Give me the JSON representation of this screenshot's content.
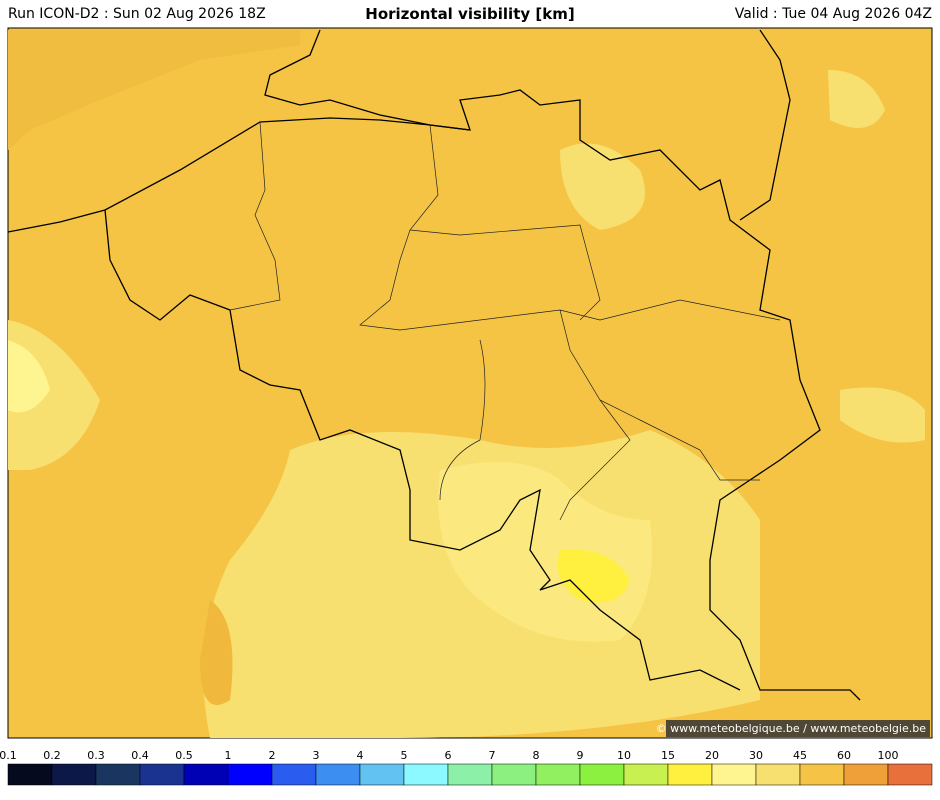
{
  "header": {
    "run": "Run ICON-D2 : Sun 02 Aug 2026 18Z",
    "title": "Horizontal visibility [km]",
    "valid": "Valid : Tue 04 Aug 2026 04Z"
  },
  "map": {
    "credit": "© www.meteobelgique.be / www.meteobelgie.be"
  },
  "colorbar": {
    "labels": [
      "0.1",
      "0.2",
      "0.3",
      "0.4",
      "0.5",
      "1",
      "2",
      "3",
      "4",
      "5",
      "6",
      "7",
      "8",
      "9",
      "10",
      "15",
      "20",
      "30",
      "45",
      "60",
      "100"
    ],
    "colors": [
      "#050a1e",
      "#0c1848",
      "#1a3560",
      "#1a3290",
      "#0000b4",
      "#0000ff",
      "#2a5cf0",
      "#3c8ef0",
      "#62c2f2",
      "#8cf8ff",
      "#8cf0a8",
      "#8cf080",
      "#90f060",
      "#8cf040",
      "#c8f050",
      "#fff040",
      "#fff590",
      "#f8e070",
      "#f5c447",
      "#f0a038",
      "#e8703a"
    ]
  }
}
